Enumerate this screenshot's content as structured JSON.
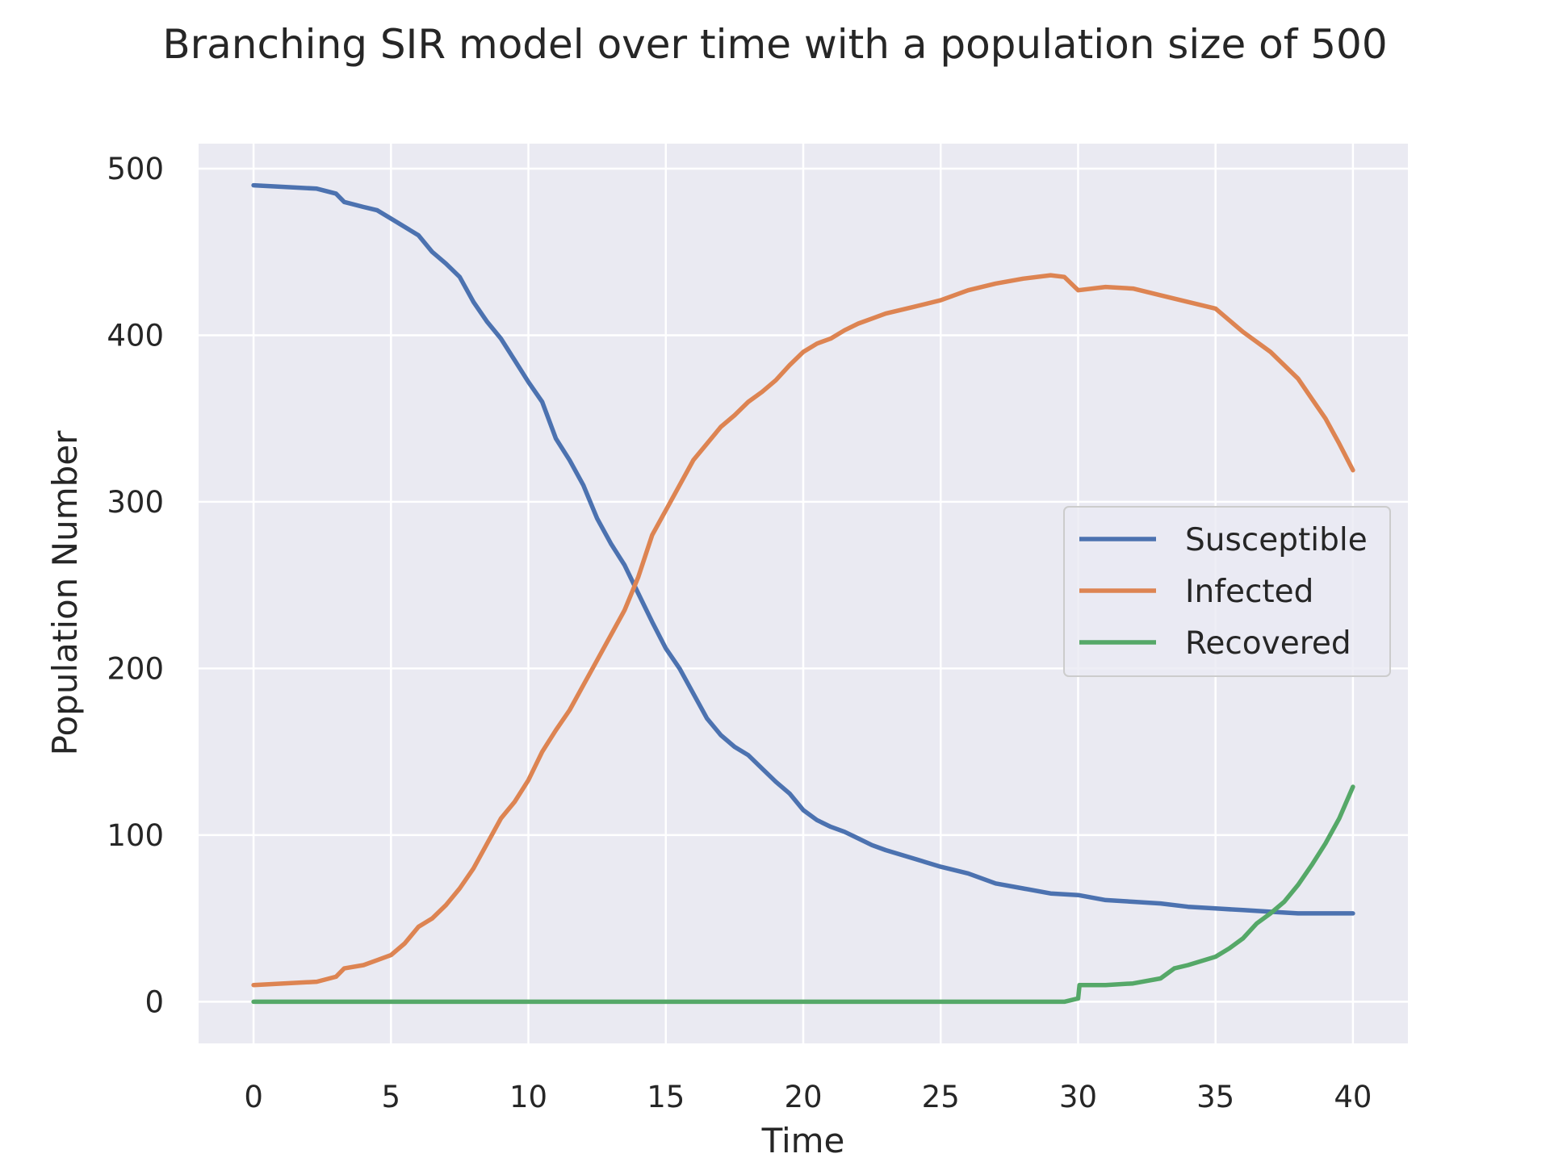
{
  "chart_data": {
    "type": "line",
    "title": "Branching SIR model over time with a population size of 500",
    "xlabel": "Time",
    "ylabel": "Population Number",
    "xlim": [
      -2,
      42
    ],
    "ylim": [
      -25,
      515
    ],
    "xticks": [
      0,
      5,
      10,
      15,
      20,
      25,
      30,
      35,
      40
    ],
    "yticks": [
      0,
      100,
      200,
      300,
      400,
      500
    ],
    "grid": true,
    "legend_position": "center-right",
    "background_color": "#eaeaf2",
    "series": [
      {
        "name": "Susceptible",
        "color": "#4c72b0",
        "x": [
          0,
          2.3,
          3,
          3.3,
          4,
          4.5,
          5,
          6,
          6.5,
          7,
          7.5,
          8,
          8.5,
          9,
          9.5,
          10,
          10.5,
          11,
          11.5,
          12,
          12.5,
          13,
          13.5,
          14,
          14.5,
          15,
          15.5,
          16,
          16.5,
          17,
          17.5,
          18,
          18.5,
          19,
          19.5,
          20,
          20.5,
          21,
          21.5,
          22,
          22.5,
          23,
          24,
          25,
          26,
          27,
          28,
          29,
          30,
          31,
          32,
          33,
          34,
          35,
          36,
          37,
          38,
          39,
          40
        ],
        "y": [
          490,
          488,
          485,
          480,
          477,
          475,
          470,
          460,
          450,
          443,
          435,
          420,
          408,
          398,
          385,
          372,
          360,
          338,
          325,
          310,
          290,
          275,
          262,
          245,
          228,
          212,
          200,
          185,
          170,
          160,
          153,
          148,
          140,
          132,
          125,
          115,
          109,
          105,
          102,
          98,
          94,
          91,
          86,
          81,
          77,
          71,
          68,
          65,
          64,
          61,
          60,
          59,
          57,
          56,
          55,
          54,
          53,
          53,
          53
        ]
      },
      {
        "name": "Infected",
        "color": "#dd8452",
        "x": [
          0,
          2.3,
          3,
          3.3,
          4,
          4.5,
          5,
          5.5,
          6,
          6.5,
          7,
          7.5,
          8,
          8.5,
          9,
          9.5,
          10,
          10.5,
          11,
          11.5,
          12,
          12.5,
          13,
          13.5,
          14,
          14.5,
          15,
          15.5,
          16,
          16.5,
          17,
          17.5,
          18,
          18.5,
          19,
          19.5,
          20,
          20.5,
          21,
          21.5,
          22,
          22.5,
          23,
          24,
          25,
          26,
          27,
          28,
          29,
          29.5,
          30,
          31,
          32,
          33,
          34,
          35,
          36,
          37,
          38,
          38.5,
          39,
          39.5,
          40
        ],
        "y": [
          10,
          12,
          15,
          20,
          22,
          25,
          28,
          35,
          45,
          50,
          58,
          68,
          80,
          95,
          110,
          120,
          133,
          150,
          163,
          175,
          190,
          205,
          220,
          235,
          255,
          280,
          295,
          310,
          325,
          335,
          345,
          352,
          360,
          366,
          373,
          382,
          390,
          395,
          398,
          403,
          407,
          410,
          413,
          417,
          421,
          427,
          431,
          434,
          436,
          435,
          427,
          429,
          428,
          424,
          420,
          416,
          402,
          390,
          374,
          362,
          350,
          335,
          319
        ]
      },
      {
        "name": "Recovered",
        "color": "#55a868",
        "x": [
          0,
          29.5,
          30,
          30.05,
          31,
          32,
          33,
          33.5,
          34,
          35,
          35.5,
          36,
          36.5,
          37,
          37.5,
          38,
          38.5,
          39,
          39.5,
          40
        ],
        "y": [
          0,
          0,
          2,
          10,
          10,
          11,
          14,
          20,
          22,
          27,
          32,
          38,
          47,
          53,
          60,
          70,
          82,
          95,
          110,
          129
        ]
      }
    ]
  }
}
